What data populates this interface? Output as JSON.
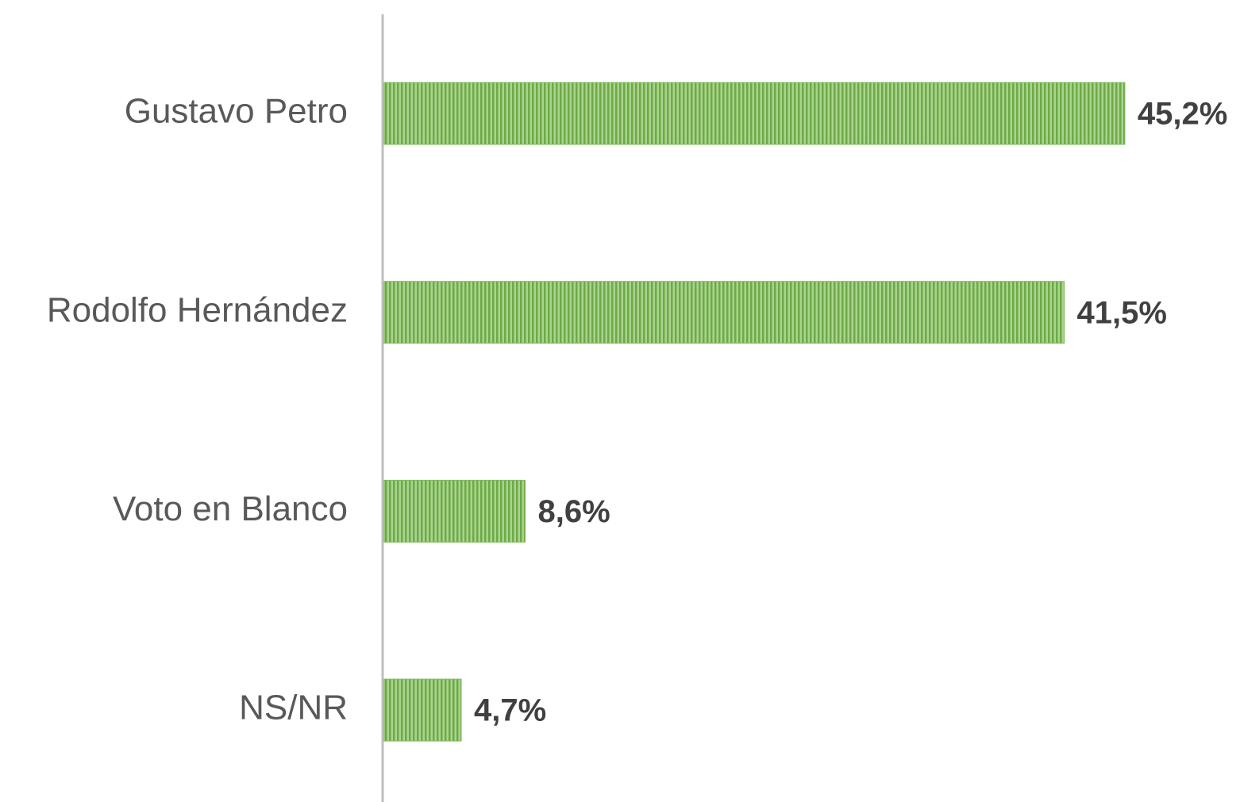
{
  "chart_data": {
    "type": "bar",
    "orientation": "horizontal",
    "categories": [
      "Gustavo Petro",
      "Rodolfo Hernández",
      "Voto en Blanco",
      "NS/NR"
    ],
    "values": [
      45.2,
      41.5,
      8.6,
      4.7
    ],
    "value_labels": [
      "45,2%",
      "41,5%",
      "8,6%",
      "4,7%"
    ],
    "color": "#8cc46c",
    "xlim": [
      0,
      50
    ]
  }
}
